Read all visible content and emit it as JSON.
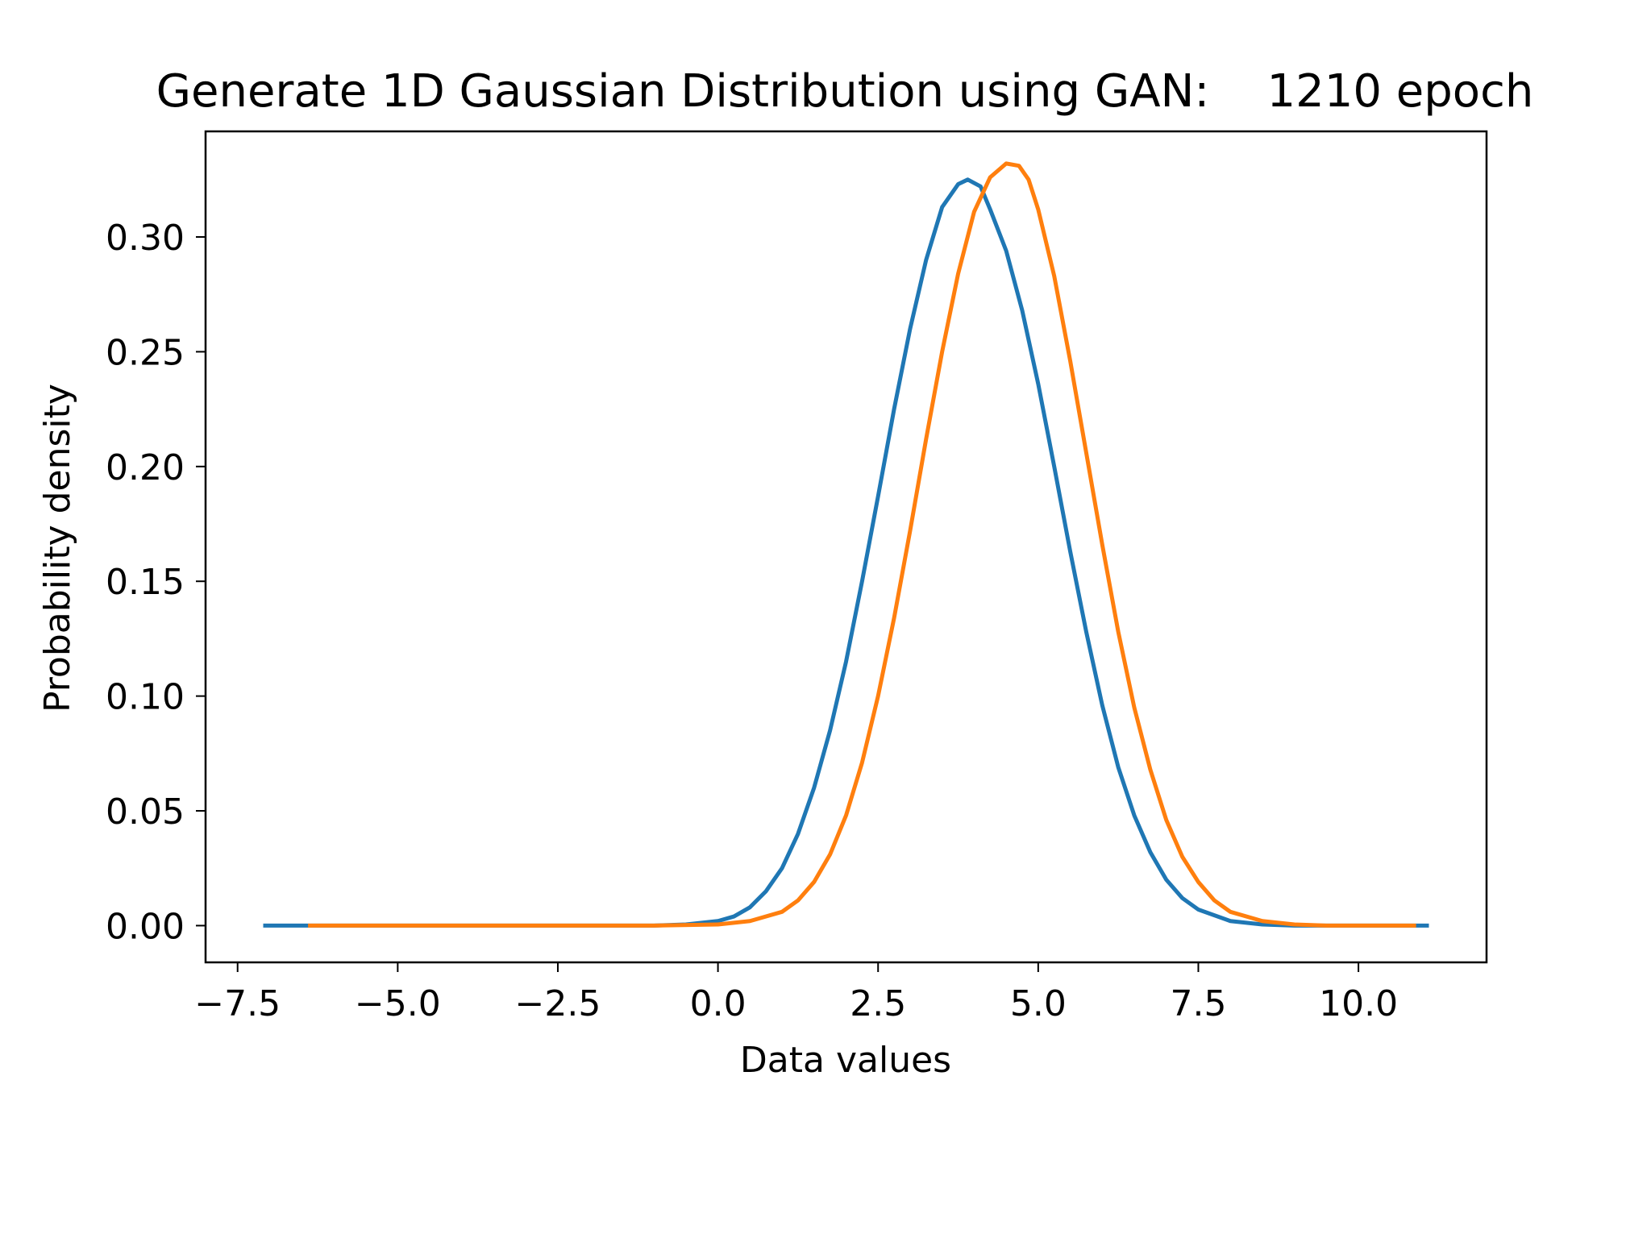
{
  "chart_data": {
    "type": "line",
    "title": "Generate 1D Gaussian Distribution using GAN:    1210 epoch",
    "xlabel": "Data values",
    "ylabel": "Probability density",
    "xlim": [
      -8.0,
      12.0
    ],
    "ylim": [
      -0.016,
      0.346
    ],
    "grid": false,
    "legend": "none",
    "x_ticks": [
      -7.5,
      -5.0,
      -2.5,
      0.0,
      2.5,
      5.0,
      7.5,
      10.0
    ],
    "x_tick_labels": [
      "−7.5",
      "−5.0",
      "−2.5",
      "0.0",
      "2.5",
      "5.0",
      "7.5",
      "10.0"
    ],
    "y_ticks": [
      0.0,
      0.05,
      0.1,
      0.15,
      0.2,
      0.25,
      0.3
    ],
    "y_tick_labels": [
      "0.00",
      "0.05",
      "0.10",
      "0.15",
      "0.20",
      "0.25",
      "0.30"
    ],
    "series": [
      {
        "color": "#1f77b4",
        "x": [
          -7.1,
          -6.0,
          -5.0,
          -4.0,
          -3.0,
          -2.0,
          -1.0,
          -0.5,
          0.0,
          0.25,
          0.5,
          0.75,
          1.0,
          1.25,
          1.5,
          1.75,
          2.0,
          2.25,
          2.5,
          2.75,
          3.0,
          3.25,
          3.5,
          3.75,
          3.9,
          4.1,
          4.25,
          4.5,
          4.75,
          5.0,
          5.25,
          5.5,
          5.75,
          6.0,
          6.25,
          6.5,
          6.75,
          7.0,
          7.25,
          7.5,
          8.0,
          8.5,
          9.0,
          9.5,
          10.0,
          11.1
        ],
        "y": [
          0.0,
          0.0,
          0.0,
          0.0,
          0.0,
          0.0,
          0.0,
          0.0005,
          0.002,
          0.004,
          0.008,
          0.015,
          0.025,
          0.04,
          0.06,
          0.085,
          0.115,
          0.15,
          0.187,
          0.225,
          0.26,
          0.29,
          0.313,
          0.323,
          0.325,
          0.322,
          0.312,
          0.294,
          0.268,
          0.236,
          0.2,
          0.163,
          0.128,
          0.096,
          0.069,
          0.048,
          0.032,
          0.02,
          0.012,
          0.007,
          0.002,
          0.0005,
          0.0,
          0.0,
          0.0,
          0.0
        ]
      },
      {
        "color": "#ff7f0e",
        "x": [
          -6.4,
          -5.0,
          -4.0,
          -3.0,
          -2.0,
          -1.0,
          0.0,
          0.5,
          1.0,
          1.25,
          1.5,
          1.75,
          2.0,
          2.25,
          2.5,
          2.75,
          3.0,
          3.25,
          3.5,
          3.75,
          4.0,
          4.25,
          4.5,
          4.7,
          4.85,
          5.0,
          5.25,
          5.5,
          5.75,
          6.0,
          6.25,
          6.5,
          6.75,
          7.0,
          7.25,
          7.5,
          7.75,
          8.0,
          8.5,
          9.0,
          9.5,
          10.0,
          10.9
        ],
        "y": [
          0.0,
          0.0,
          0.0,
          0.0,
          0.0,
          0.0,
          0.0005,
          0.002,
          0.006,
          0.011,
          0.019,
          0.031,
          0.048,
          0.071,
          0.1,
          0.134,
          0.172,
          0.212,
          0.25,
          0.284,
          0.311,
          0.326,
          0.332,
          0.331,
          0.325,
          0.312,
          0.283,
          0.246,
          0.206,
          0.166,
          0.128,
          0.095,
          0.068,
          0.046,
          0.03,
          0.019,
          0.011,
          0.006,
          0.002,
          0.0005,
          0.0,
          0.0,
          0.0
        ]
      }
    ]
  }
}
